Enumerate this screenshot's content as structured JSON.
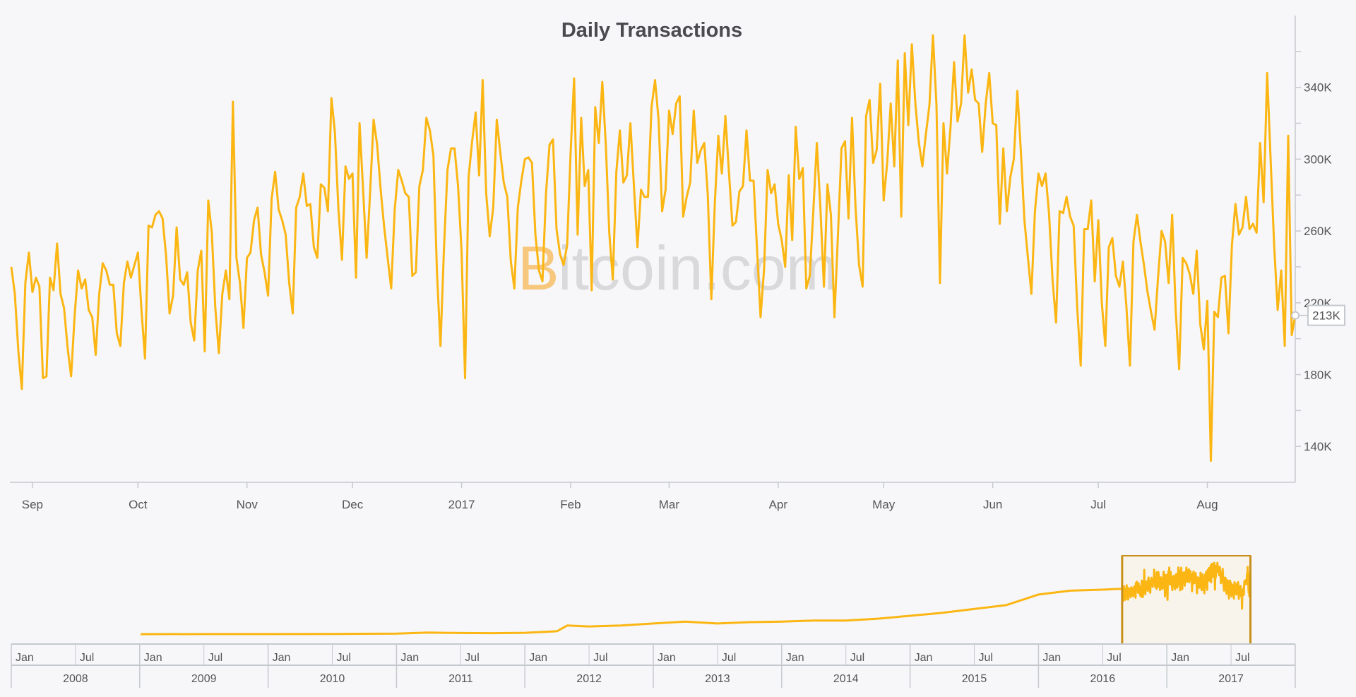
{
  "colors": {
    "background": "#f7f7f9",
    "series": "#fbb613",
    "axis": "#c5c9cd",
    "text": "#555555",
    "selection_fill": "#f8f4ec",
    "selection_border": "#c8901a",
    "watermark_b": "#f7c77e",
    "watermark_text": "#d9d9db"
  },
  "watermark": {
    "prefix": "B",
    "rest": "itcoin.com"
  },
  "tooltip": {
    "value_label": "213K"
  },
  "chart_data": [
    {
      "type": "line",
      "title": "Daily Transactions",
      "xlabel": "",
      "ylabel": "",
      "value_unit": "K",
      "start_date": "2016-08-26",
      "interval": "daily",
      "ylim": [
        120,
        380
      ],
      "yticks": [
        {
          "v": 140,
          "label": "140K"
        },
        {
          "v": 180,
          "label": "180K"
        },
        {
          "v": 220,
          "label": "220K"
        },
        {
          "v": 260,
          "label": "260K"
        },
        {
          "v": 300,
          "label": "300K"
        },
        {
          "v": 340,
          "label": "340K"
        }
      ],
      "xticks": [
        {
          "date": "2016-09-01",
          "label": "Sep"
        },
        {
          "date": "2016-10-01",
          "label": "Oct"
        },
        {
          "date": "2016-11-01",
          "label": "Nov"
        },
        {
          "date": "2016-12-01",
          "label": "Dec"
        },
        {
          "date": "2017-01-01",
          "label": "2017"
        },
        {
          "date": "2017-02-01",
          "label": "Feb"
        },
        {
          "date": "2017-03-01",
          "label": "Mar"
        },
        {
          "date": "2017-04-01",
          "label": "Apr"
        },
        {
          "date": "2017-05-01",
          "label": "May"
        },
        {
          "date": "2017-06-01",
          "label": "Jun"
        },
        {
          "date": "2017-07-01",
          "label": "Jul"
        },
        {
          "date": "2017-08-01",
          "label": "Aug"
        }
      ],
      "grid": false,
      "values": [
        240,
        225,
        193,
        172,
        231,
        248,
        226,
        234,
        229,
        178,
        179,
        234,
        227,
        253,
        225,
        217,
        195,
        179,
        213,
        238,
        228,
        233,
        216,
        212,
        191,
        225,
        242,
        238,
        230,
        230,
        203,
        196,
        231,
        243,
        234,
        241,
        248,
        216,
        189,
        263,
        262,
        269,
        271,
        267,
        246,
        214,
        224,
        262,
        233,
        230,
        237,
        209,
        199,
        238,
        249,
        193,
        277,
        259,
        217,
        192,
        225,
        238,
        222,
        332,
        245,
        231,
        206,
        245,
        248,
        266,
        273,
        247,
        237,
        224,
        278,
        293,
        272,
        266,
        258,
        231,
        214,
        273,
        279,
        292,
        274,
        275,
        251,
        245,
        286,
        284,
        271,
        334,
        315,
        272,
        244,
        296,
        289,
        292,
        234,
        320,
        283,
        245,
        281,
        322,
        308,
        283,
        262,
        245,
        228,
        272,
        294,
        288,
        281,
        279,
        235,
        237,
        285,
        294,
        323,
        316,
        302,
        237,
        196,
        250,
        294,
        306,
        306,
        285,
        249,
        178,
        290,
        310,
        326,
        291,
        344,
        281,
        257,
        273,
        322,
        304,
        287,
        279,
        243,
        228,
        273,
        288,
        300,
        301,
        298,
        258,
        238,
        232,
        281,
        308,
        311,
        261,
        247,
        241,
        252,
        304,
        345,
        258,
        323,
        285,
        294,
        227,
        329,
        309,
        343,
        308,
        259,
        233,
        293,
        316,
        287,
        291,
        320,
        285,
        251,
        283,
        279,
        279,
        329,
        344,
        322,
        271,
        283,
        327,
        314,
        331,
        335,
        268,
        279,
        287,
        327,
        298,
        305,
        309,
        280,
        222,
        276,
        313,
        292,
        324,
        293,
        263,
        265,
        282,
        285,
        316,
        288,
        288,
        250,
        212,
        239,
        294,
        281,
        286,
        264,
        255,
        240,
        291,
        255,
        318,
        289,
        295,
        228,
        235,
        271,
        309,
        273,
        229,
        286,
        269,
        212,
        258,
        306,
        310,
        267,
        323,
        273,
        241,
        229,
        324,
        333,
        298,
        305,
        342,
        277,
        298,
        331,
        296,
        355,
        268,
        359,
        319,
        364,
        331,
        309,
        296,
        314,
        330,
        369,
        330,
        231,
        320,
        292,
        318,
        354,
        321,
        331,
        369,
        337,
        350,
        333,
        331,
        304,
        331,
        348,
        320,
        319,
        264,
        306,
        271,
        290,
        300,
        338,
        304,
        266,
        245,
        225,
        271,
        292,
        285,
        292,
        270,
        233,
        209,
        271,
        270,
        279,
        268,
        263,
        218,
        185,
        261,
        261,
        277,
        232,
        266,
        220,
        196,
        251,
        256,
        235,
        229,
        243,
        218,
        185,
        254,
        269,
        254,
        241,
        226,
        215,
        205,
        234,
        260,
        254,
        231,
        269,
        216,
        183,
        245,
        242,
        236,
        225,
        249,
        208,
        194,
        221,
        132,
        215,
        212,
        234,
        235,
        203,
        252,
        275,
        258,
        262,
        279,
        261,
        264,
        259,
        309,
        276,
        348,
        300,
        252,
        216,
        238,
        196,
        313,
        202,
        213
      ]
    },
    {
      "type": "area",
      "role": "navigator",
      "value_unit": "K",
      "overview_points": [
        [
          "2009-01-03",
          0
        ],
        [
          "2009-07-01",
          0.3
        ],
        [
          "2010-01-01",
          0.5
        ],
        [
          "2010-07-01",
          1
        ],
        [
          "2011-01-01",
          3
        ],
        [
          "2011-04-01",
          8
        ],
        [
          "2011-07-01",
          6
        ],
        [
          "2011-10-01",
          5
        ],
        [
          "2012-01-01",
          7
        ],
        [
          "2012-04-01",
          15
        ],
        [
          "2012-05-01",
          45
        ],
        [
          "2012-07-01",
          40
        ],
        [
          "2012-10-01",
          45
        ],
        [
          "2013-01-01",
          55
        ],
        [
          "2013-04-01",
          65
        ],
        [
          "2013-07-01",
          55
        ],
        [
          "2013-10-01",
          62
        ],
        [
          "2014-01-01",
          65
        ],
        [
          "2014-04-01",
          70
        ],
        [
          "2014-07-01",
          70
        ],
        [
          "2014-10-01",
          80
        ],
        [
          "2015-01-01",
          95
        ],
        [
          "2015-04-01",
          110
        ],
        [
          "2015-07-01",
          130
        ],
        [
          "2015-10-01",
          150
        ],
        [
          "2016-01-01",
          205
        ],
        [
          "2016-04-01",
          225
        ],
        [
          "2016-07-01",
          230
        ],
        [
          "2016-08-25",
          235
        ]
      ],
      "selected_range": [
        "2016-08-26",
        "2017-08-26"
      ],
      "half_year_labels": [
        "Jan",
        "Jul"
      ],
      "years": [
        "2008",
        "2009",
        "2010",
        "2011",
        "2012",
        "2013",
        "2014",
        "2015",
        "2016",
        "2017"
      ]
    }
  ]
}
